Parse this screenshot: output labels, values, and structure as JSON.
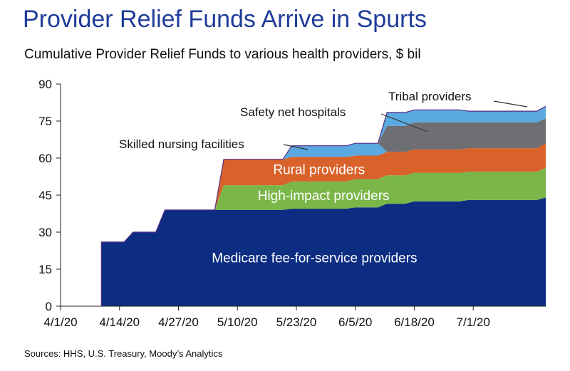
{
  "header": {
    "title": "Provider Relief Funds Arrive in Spurts",
    "subtitle": "Cumulative Provider Relief Funds to various health providers, $ bil"
  },
  "footer": {
    "source": "Sources: HHS, U.S. Treasury, Moody’s Analytics"
  },
  "chart_data": {
    "type": "area",
    "stacked": true,
    "title": "Provider Relief Funds Arrive in Spurts",
    "subtitle": "Cumulative Provider Relief Funds to various health providers, $ bil",
    "xlabel": "",
    "ylabel": "",
    "ylim": [
      0,
      90
    ],
    "yticks": [
      0,
      15,
      30,
      45,
      60,
      75,
      90
    ],
    "xlim": [
      "2020-04-01",
      "2020-07-17"
    ],
    "xticks": [
      "4/1/20",
      "4/14/20",
      "4/27/20",
      "5/10/20",
      "5/23/20",
      "6/5/20",
      "6/18/20",
      "7/1/20"
    ],
    "grid": false,
    "legend": "labels inside areas",
    "x": [
      "2020-04-10",
      "2020-04-17",
      "2020-04-24",
      "2020-05-07",
      "2020-05-22",
      "2020-06-05",
      "2020-06-12",
      "2020-06-18",
      "2020-06-30",
      "2020-07-17"
    ],
    "series": [
      {
        "name": "Medicare fee-for-service providers",
        "color": "#0c2d82",
        "values": [
          26,
          30,
          39,
          39,
          39.5,
          40,
          41.5,
          42.5,
          43,
          44
        ]
      },
      {
        "name": "High-impact providers",
        "color": "#7ab648",
        "values": [
          0,
          0,
          0,
          10,
          11,
          11.5,
          11.5,
          11.5,
          11.5,
          12
        ]
      },
      {
        "name": "Rural providers",
        "color": "#d9622b",
        "values": [
          0,
          0,
          0,
          10.5,
          10,
          9.5,
          9.5,
          9.5,
          9.5,
          10
        ]
      },
      {
        "name": "Skilled nursing facilities",
        "color": "#5aa9e0",
        "values": [
          0,
          0,
          0,
          0,
          4.5,
          5,
          0,
          0,
          0,
          0
        ]
      },
      {
        "name": "Safety net hospitals",
        "color": "#6d6f73",
        "values": [
          0,
          0,
          0,
          0,
          0,
          0,
          10.5,
          11,
          10.5,
          10
        ]
      },
      {
        "name": "Tribal providers",
        "color": "#5aa9e0",
        "values": [
          0,
          0,
          0,
          0,
          0,
          0,
          5.5,
          5,
          4.5,
          5
        ]
      }
    ],
    "annotations": [
      {
        "text": "Tribal providers"
      },
      {
        "text": "Safety net hospitals"
      },
      {
        "text": "Skilled nursing facilities"
      }
    ]
  }
}
